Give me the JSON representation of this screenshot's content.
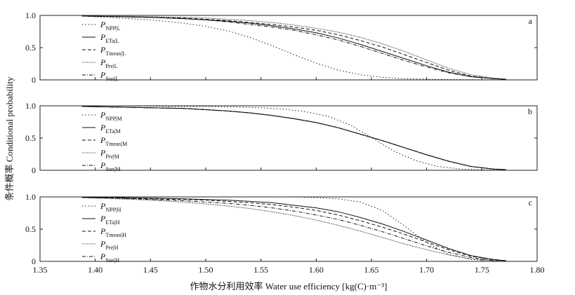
{
  "chart_data": {
    "type": "line",
    "shared_x_axis": {
      "label": "作物水分利用效率 Water use efficiency [kg(C)·m⁻³]",
      "range": [
        1.35,
        1.8
      ],
      "ticks": [
        1.35,
        1.4,
        1.45,
        1.5,
        1.55,
        1.6,
        1.65,
        1.7,
        1.75,
        1.8
      ],
      "tick_labels": [
        "1.35",
        "1.40",
        "1.45",
        "1.50",
        "1.55",
        "1.60",
        "1.65",
        "1.70",
        "1.75",
        "1.80"
      ]
    },
    "shared_y_axis": {
      "label": "条件概率 Conditional probability",
      "range": [
        0,
        1.0
      ],
      "ticks": [
        0,
        0.5,
        1.0
      ],
      "tick_labels": [
        "0",
        "0.5",
        "1.0"
      ]
    },
    "grid": false,
    "legend_placement": "top-left",
    "panels": [
      {
        "panel_label": "a",
        "legend": [
          {
            "main": "P",
            "sub": "NPP|L",
            "style": "dotted"
          },
          {
            "main": "P",
            "sub": "ETa|L",
            "style": "solid"
          },
          {
            "main": "P",
            "sub": "Tmean|L",
            "style": "dashed"
          },
          {
            "main": "P",
            "sub": "Pre|L",
            "style": "dense-dotted"
          },
          {
            "main": "P",
            "sub": "Sun|L",
            "style": "dash-dot"
          }
        ],
        "series": [
          {
            "style": "dotted",
            "x": [
              1.388,
              1.42,
              1.45,
              1.48,
              1.5,
              1.52,
              1.54,
              1.56,
              1.58,
              1.6,
              1.62,
              1.64,
              1.66,
              1.68,
              1.7,
              1.72,
              1.74,
              1.772
            ],
            "y": [
              0.99,
              0.96,
              0.93,
              0.88,
              0.83,
              0.76,
              0.66,
              0.53,
              0.39,
              0.26,
              0.15,
              0.08,
              0.04,
              0.02,
              0.01,
              0.005,
              0.002,
              0.0
            ]
          },
          {
            "style": "solid",
            "x": [
              1.388,
              1.42,
              1.45,
              1.48,
              1.5,
              1.52,
              1.54,
              1.56,
              1.58,
              1.6,
              1.62,
              1.64,
              1.66,
              1.68,
              1.7,
              1.72,
              1.74,
              1.76,
              1.772
            ],
            "y": [
              0.99,
              0.98,
              0.97,
              0.95,
              0.93,
              0.91,
              0.88,
              0.84,
              0.79,
              0.73,
              0.65,
              0.55,
              0.44,
              0.33,
              0.22,
              0.12,
              0.05,
              0.02,
              0.01
            ]
          },
          {
            "style": "dashed",
            "x": [
              1.388,
              1.42,
              1.45,
              1.48,
              1.5,
              1.52,
              1.54,
              1.56,
              1.58,
              1.6,
              1.62,
              1.64,
              1.66,
              1.68,
              1.7,
              1.72,
              1.74,
              1.76,
              1.772
            ],
            "y": [
              0.99,
              0.98,
              0.97,
              0.96,
              0.94,
              0.92,
              0.89,
              0.86,
              0.82,
              0.77,
              0.7,
              0.61,
              0.51,
              0.39,
              0.27,
              0.15,
              0.06,
              0.02,
              0.01
            ]
          },
          {
            "style": "dense-dotted",
            "x": [
              1.388,
              1.42,
              1.45,
              1.48,
              1.5,
              1.52,
              1.54,
              1.56,
              1.58,
              1.6,
              1.62,
              1.64,
              1.66,
              1.68,
              1.7,
              1.72,
              1.74,
              1.76,
              1.772
            ],
            "y": [
              0.99,
              0.99,
              0.98,
              0.97,
              0.96,
              0.94,
              0.92,
              0.89,
              0.85,
              0.8,
              0.74,
              0.66,
              0.56,
              0.44,
              0.31,
              0.18,
              0.08,
              0.03,
              0.01
            ]
          },
          {
            "style": "dash-dot",
            "x": [
              1.388,
              1.42,
              1.45,
              1.48,
              1.5,
              1.52,
              1.54,
              1.56,
              1.58,
              1.6,
              1.62,
              1.64,
              1.66,
              1.68,
              1.7,
              1.72,
              1.74,
              1.76,
              1.772
            ],
            "y": [
              0.99,
              0.98,
              0.97,
              0.95,
              0.93,
              0.9,
              0.86,
              0.82,
              0.77,
              0.7,
              0.62,
              0.52,
              0.41,
              0.3,
              0.2,
              0.11,
              0.05,
              0.02,
              0.01
            ]
          }
        ]
      },
      {
        "panel_label": "b",
        "legend": [
          {
            "main": "P",
            "sub": "NPP|M",
            "style": "dotted"
          },
          {
            "main": "P",
            "sub": "ETa|M",
            "style": "solid"
          },
          {
            "main": "P",
            "sub": "Tmean|M",
            "style": "dashed"
          },
          {
            "main": "P",
            "sub": "Pre|M",
            "style": "dense-dotted"
          },
          {
            "main": "P",
            "sub": "Sun|M",
            "style": "dash-dot"
          }
        ],
        "series": [
          {
            "style": "dotted",
            "x": [
              1.388,
              1.43,
              1.47,
              1.5,
              1.53,
              1.55,
              1.57,
              1.59,
              1.61,
              1.63,
              1.65,
              1.67,
              1.69,
              1.71,
              1.73,
              1.75,
              1.772
            ],
            "y": [
              1.0,
              1.0,
              0.99,
              0.99,
              0.98,
              0.97,
              0.95,
              0.91,
              0.84,
              0.71,
              0.51,
              0.3,
              0.15,
              0.06,
              0.02,
              0.005,
              0.0
            ]
          },
          {
            "style": "solid",
            "x": [
              1.388,
              1.42,
              1.45,
              1.48,
              1.5,
              1.52,
              1.54,
              1.56,
              1.58,
              1.6,
              1.62,
              1.64,
              1.66,
              1.68,
              1.7,
              1.72,
              1.74,
              1.76,
              1.772
            ],
            "y": [
              0.99,
              0.98,
              0.97,
              0.96,
              0.94,
              0.92,
              0.89,
              0.85,
              0.8,
              0.74,
              0.66,
              0.56,
              0.46,
              0.35,
              0.24,
              0.14,
              0.06,
              0.02,
              0.01
            ]
          },
          {
            "style": "dashed",
            "x": [
              1.388,
              1.42,
              1.45,
              1.48,
              1.5,
              1.52,
              1.54,
              1.56,
              1.58,
              1.6,
              1.62,
              1.64,
              1.66,
              1.68,
              1.7,
              1.72,
              1.74,
              1.76,
              1.772
            ],
            "y": [
              0.99,
              0.98,
              0.97,
              0.96,
              0.94,
              0.92,
              0.89,
              0.85,
              0.8,
              0.74,
              0.66,
              0.56,
              0.46,
              0.35,
              0.24,
              0.14,
              0.06,
              0.02,
              0.01
            ]
          },
          {
            "style": "dense-dotted",
            "x": [
              1.388,
              1.42,
              1.45,
              1.48,
              1.5,
              1.52,
              1.54,
              1.56,
              1.58,
              1.6,
              1.62,
              1.64,
              1.66,
              1.68,
              1.7,
              1.72,
              1.74,
              1.76,
              1.772
            ],
            "y": [
              0.99,
              0.98,
              0.97,
              0.96,
              0.94,
              0.92,
              0.89,
              0.85,
              0.8,
              0.74,
              0.66,
              0.56,
              0.46,
              0.35,
              0.24,
              0.14,
              0.06,
              0.02,
              0.01
            ]
          },
          {
            "style": "dash-dot",
            "x": [
              1.388,
              1.42,
              1.45,
              1.48,
              1.5,
              1.52,
              1.54,
              1.56,
              1.58,
              1.6,
              1.62,
              1.64,
              1.66,
              1.68,
              1.7,
              1.72,
              1.74,
              1.76,
              1.772
            ],
            "y": [
              0.99,
              0.98,
              0.97,
              0.96,
              0.94,
              0.92,
              0.89,
              0.85,
              0.8,
              0.74,
              0.66,
              0.56,
              0.46,
              0.35,
              0.24,
              0.14,
              0.06,
              0.02,
              0.01
            ]
          }
        ]
      },
      {
        "panel_label": "c",
        "legend": [
          {
            "main": "P",
            "sub": "NPP|H",
            "style": "dotted"
          },
          {
            "main": "P",
            "sub": "ETa|H",
            "style": "solid"
          },
          {
            "main": "P",
            "sub": "Tmean|H",
            "style": "dashed"
          },
          {
            "main": "P",
            "sub": "Pre|H",
            "style": "dense-dotted"
          },
          {
            "main": "P",
            "sub": "Sun|H",
            "style": "dash-dot"
          }
        ],
        "series": [
          {
            "style": "dotted",
            "x": [
              1.388,
              1.45,
              1.5,
              1.55,
              1.58,
              1.6,
              1.62,
              1.64,
              1.66,
              1.68,
              1.7,
              1.72,
              1.74,
              1.76,
              1.772
            ],
            "y": [
              1.0,
              1.0,
              1.0,
              1.0,
              1.0,
              0.99,
              0.97,
              0.92,
              0.79,
              0.55,
              0.29,
              0.11,
              0.03,
              0.01,
              0.0
            ]
          },
          {
            "style": "solid",
            "x": [
              1.388,
              1.42,
              1.45,
              1.48,
              1.5,
              1.52,
              1.54,
              1.56,
              1.58,
              1.6,
              1.62,
              1.64,
              1.66,
              1.68,
              1.7,
              1.72,
              1.74,
              1.76,
              1.772
            ],
            "y": [
              0.99,
              0.99,
              0.98,
              0.97,
              0.96,
              0.95,
              0.93,
              0.91,
              0.87,
              0.83,
              0.77,
              0.68,
              0.58,
              0.46,
              0.33,
              0.2,
              0.09,
              0.03,
              0.01
            ]
          },
          {
            "style": "dashed",
            "x": [
              1.388,
              1.42,
              1.45,
              1.48,
              1.5,
              1.52,
              1.54,
              1.56,
              1.58,
              1.6,
              1.62,
              1.64,
              1.66,
              1.68,
              1.7,
              1.72,
              1.74,
              1.76,
              1.772
            ],
            "y": [
              0.99,
              0.98,
              0.97,
              0.96,
              0.95,
              0.93,
              0.91,
              0.88,
              0.84,
              0.79,
              0.72,
              0.63,
              0.53,
              0.42,
              0.3,
              0.18,
              0.08,
              0.03,
              0.01
            ]
          },
          {
            "style": "dense-dotted",
            "x": [
              1.388,
              1.42,
              1.45,
              1.48,
              1.5,
              1.52,
              1.54,
              1.56,
              1.58,
              1.6,
              1.62,
              1.64,
              1.66,
              1.68,
              1.7,
              1.72,
              1.74,
              1.76,
              1.772
            ],
            "y": [
              0.99,
              0.97,
              0.95,
              0.92,
              0.89,
              0.86,
              0.82,
              0.77,
              0.71,
              0.64,
              0.56,
              0.47,
              0.37,
              0.27,
              0.18,
              0.1,
              0.04,
              0.01,
              0.0
            ]
          },
          {
            "style": "dash-dot",
            "x": [
              1.388,
              1.42,
              1.45,
              1.48,
              1.5,
              1.52,
              1.54,
              1.56,
              1.58,
              1.6,
              1.62,
              1.64,
              1.66,
              1.68,
              1.7,
              1.72,
              1.74,
              1.76,
              1.772
            ],
            "y": [
              0.99,
              0.98,
              0.96,
              0.94,
              0.92,
              0.9,
              0.87,
              0.83,
              0.78,
              0.72,
              0.65,
              0.56,
              0.46,
              0.35,
              0.24,
              0.14,
              0.06,
              0.02,
              0.01
            ]
          }
        ]
      }
    ]
  }
}
